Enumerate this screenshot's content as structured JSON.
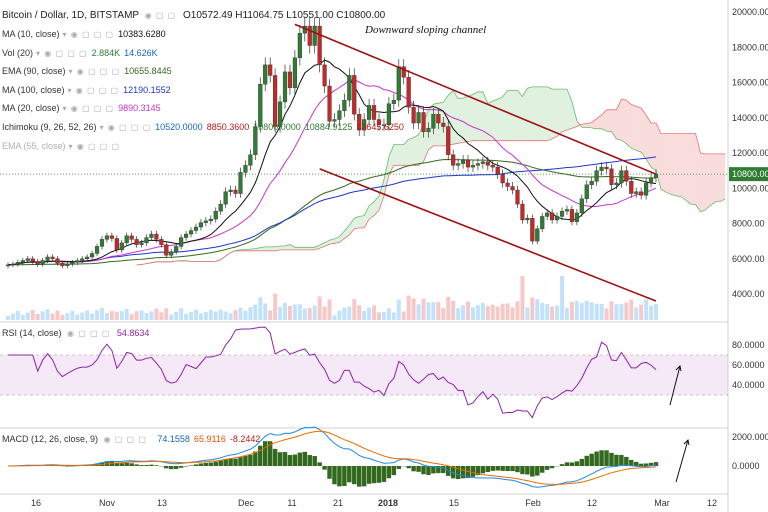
{
  "header": {
    "symbol": "Bitcoin / Dollar, 1D, BITSTAMP",
    "ohlc": "O10572.49  H11064.75  L10551.00  C10800.00"
  },
  "indicators": [
    {
      "name": "MA (10, close)",
      "values": [
        "10383.6280"
      ],
      "colors": [
        "#111111"
      ]
    },
    {
      "name": "Vol (20)",
      "values": [
        "2.884K",
        "14.626K"
      ],
      "colors": [
        "#2e7d32",
        "#1565c0"
      ]
    },
    {
      "name": "EMA (90, close)",
      "values": [
        "10655.8445"
      ],
      "colors": [
        "#33691e"
      ]
    },
    {
      "name": "MA (100, close)",
      "values": [
        "12190.1552"
      ],
      "colors": [
        "#1f35d0"
      ]
    },
    {
      "name": "MA (20, close)",
      "values": [
        "9890.3145"
      ],
      "colors": [
        "#cc33cc"
      ]
    },
    {
      "name": "Ichimoku (9, 26, 52, 26)",
      "values": [
        "10520.0000",
        "8850.3600",
        "10800.0000",
        "10884.9125",
        "13645.6250"
      ],
      "colors": [
        "#1565c0",
        "#b71c1c",
        "#2e7d32",
        "#2e7d32",
        "#b71c1c"
      ]
    },
    {
      "name": "EMA (55, close)",
      "values": [],
      "colors": []
    }
  ],
  "annotation": "Downward sloping channel",
  "last_price_label": "10800.00",
  "price_axis": [
    "20000.00",
    "18000.00",
    "16000.00",
    "14000.00",
    "12000.00",
    "10000.00",
    "8000.00",
    "6000.00",
    "4000.00"
  ],
  "rsi": {
    "name": "RSI (14, close)",
    "value": "54.8634",
    "axis": [
      "80.0000",
      "60.0000",
      "40.0000"
    ]
  },
  "macd": {
    "name": "MACD (12, 26, close, 9)",
    "values": [
      "74.1558",
      "65.9116",
      "-8.2442"
    ],
    "colors": [
      "#1565c0",
      "#e65100",
      "#b71c1c"
    ],
    "axis": [
      "2000.0000",
      "0.0000"
    ]
  },
  "time_axis": [
    "16",
    "Nov",
    "13",
    "Dec",
    "11",
    "21",
    "2018",
    "15",
    "Feb",
    "12",
    "Mar",
    "12"
  ],
  "chart_data": {
    "type": "candlestick",
    "symbol": "Bitcoin / Dollar",
    "interval": "1D",
    "exchange": "BITSTAMP",
    "ylim": [
      3000,
      20500
    ],
    "close_path": [
      [
        5650,
        5700,
        5800,
        5900,
        6000,
        5850,
        5700,
        5900,
        6100,
        6000,
        5750,
        5600,
        5700,
        5800,
        5900,
        6000,
        6100,
        6300,
        6700,
        7100,
        7300,
        7150,
        6500,
        6900,
        7300,
        7100,
        6800,
        6900,
        7200,
        7400,
        7100,
        6800,
        6200,
        6400,
        6700,
        7200,
        7400,
        7600,
        7800,
        8050,
        8150,
        8250,
        8700,
        9100,
        9800,
        9900,
        9700,
        10900,
        11300,
        11900,
        13500,
        15900,
        17000,
        16400,
        13500,
        14900,
        16600,
        15700,
        17400,
        18800,
        19200,
        18100,
        19200,
        17000,
        15800,
        13800,
        13900,
        14400,
        15000,
        16400,
        14200,
        13300,
        13900,
        14700,
        13900,
        13600,
        13600,
        14800,
        15000,
        16900,
        16300,
        14600,
        13700,
        14300,
        13200,
        13400,
        14200,
        13700,
        13500,
        11900,
        11300,
        11400,
        11600,
        11200,
        11300,
        11400,
        11500,
        11300,
        11200,
        10800,
        10300,
        10100,
        9900,
        9100,
        8200,
        8300,
        7000,
        7700,
        8400,
        8600,
        8200,
        8400,
        8700,
        8800,
        8100,
        8600,
        9400,
        10200,
        10400,
        11000,
        11200,
        11100,
        10200,
        10300,
        11000,
        10400,
        9700,
        9800,
        9600,
        10300,
        10600,
        10800
      ]
    ],
    "last_close": 10800.0,
    "channel_upper": {
      "from": [
        "2017-12-17",
        19300
      ],
      "to": [
        "2018-02-28",
        10800
      ]
    },
    "channel_lower": {
      "from": [
        "2017-12-22",
        11100
      ],
      "to": [
        "2018-02-28",
        3600
      ]
    }
  }
}
